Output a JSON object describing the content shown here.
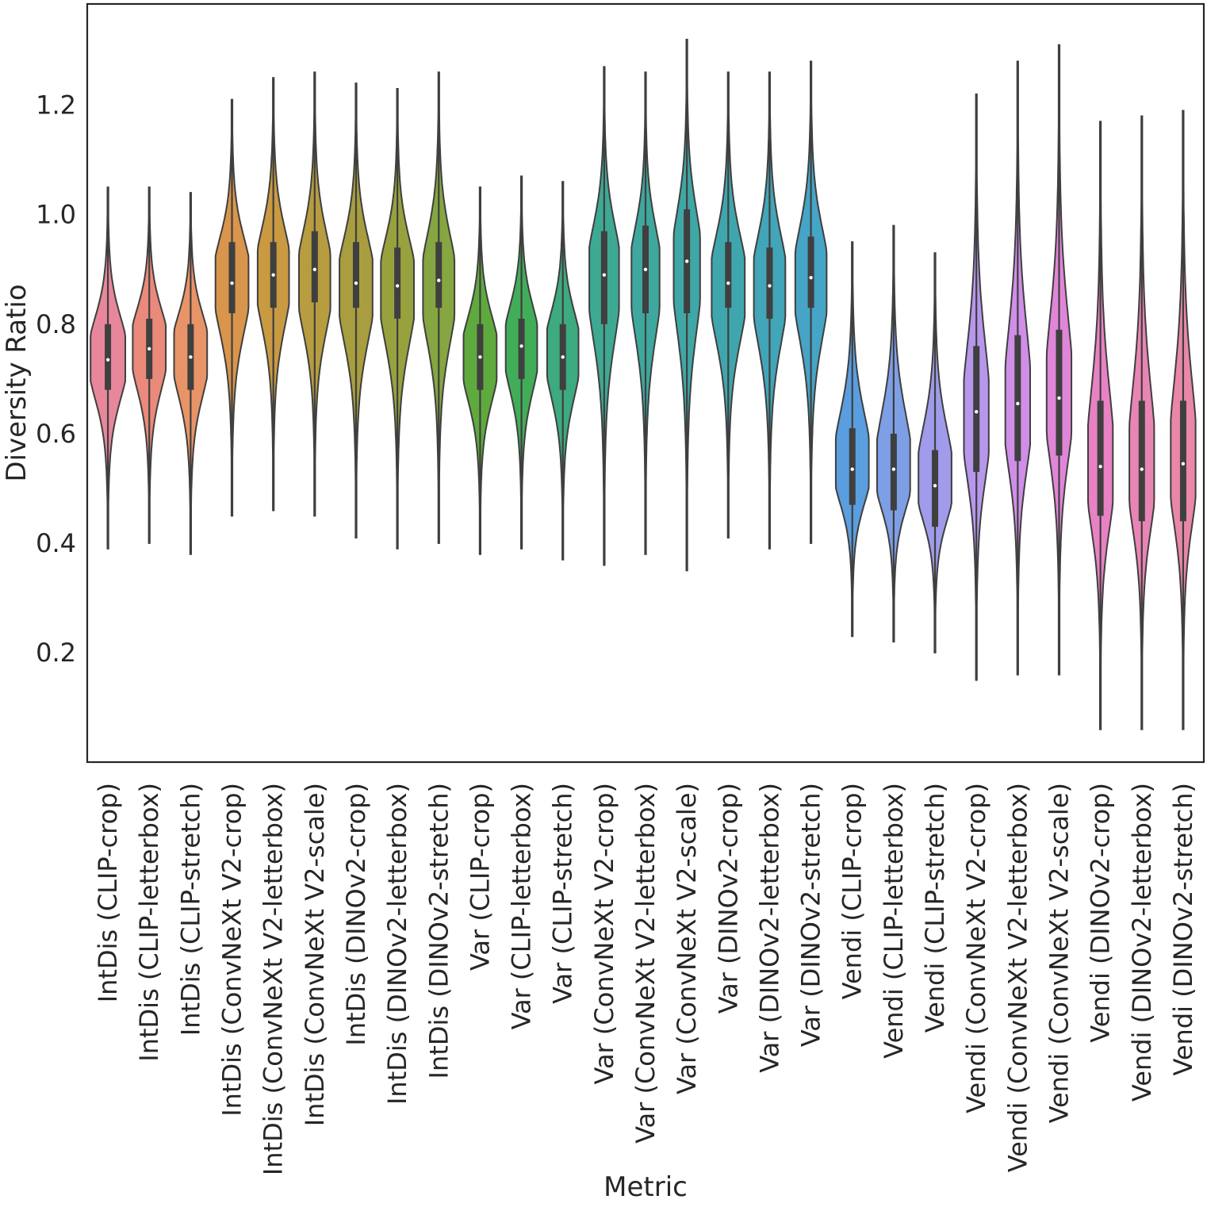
{
  "chart_data": {
    "type": "violin",
    "xlabel": "Metric",
    "ylabel": "Diversity Ratio",
    "ylim": [
      0.0,
      1.385
    ],
    "yticks": [
      0.2,
      0.4,
      0.6,
      0.8,
      1.0,
      1.2
    ],
    "ytick_labels": [
      "0.2",
      "0.4",
      "0.6",
      "0.8",
      "1.0",
      "1.2"
    ],
    "series": [
      {
        "name": "IntDis (CLIP-crop)",
        "color": "#e8879c",
        "min": 0.39,
        "q1": 0.68,
        "median": 0.735,
        "q3": 0.8,
        "max": 1.05,
        "mode": 0.74,
        "width": 0.42
      },
      {
        "name": "IntDis (CLIP-letterbox)",
        "color": "#ea8a7b",
        "min": 0.4,
        "q1": 0.7,
        "median": 0.755,
        "q3": 0.81,
        "max": 1.05,
        "mode": 0.76,
        "width": 0.4
      },
      {
        "name": "IntDis (CLIP-stretch)",
        "color": "#e99468",
        "min": 0.38,
        "q1": 0.68,
        "median": 0.74,
        "q3": 0.8,
        "max": 1.04,
        "mode": 0.75,
        "width": 0.4
      },
      {
        "name": "IntDis (ConvNeXt V2-crop)",
        "color": "#d9954c",
        "min": 0.45,
        "q1": 0.82,
        "median": 0.875,
        "q3": 0.95,
        "max": 1.21,
        "mode": 0.88,
        "width": 0.4
      },
      {
        "name": "IntDis (ConvNeXt V2-letterbox)",
        "color": "#c99a42",
        "min": 0.46,
        "q1": 0.83,
        "median": 0.89,
        "q3": 0.95,
        "max": 1.25,
        "mode": 0.89,
        "width": 0.38
      },
      {
        "name": "IntDis (ConvNeXt V2-scale)",
        "color": "#b79d3f",
        "min": 0.45,
        "q1": 0.84,
        "median": 0.9,
        "q3": 0.97,
        "max": 1.26,
        "mode": 0.88,
        "width": 0.38
      },
      {
        "name": "IntDis (DINOv2-crop)",
        "color": "#a89e3f",
        "min": 0.41,
        "q1": 0.83,
        "median": 0.875,
        "q3": 0.95,
        "max": 1.24,
        "mode": 0.87,
        "width": 0.4
      },
      {
        "name": "IntDis (DINOv2-letterbox)",
        "color": "#97a23e",
        "min": 0.39,
        "q1": 0.81,
        "median": 0.87,
        "q3": 0.94,
        "max": 1.23,
        "mode": 0.87,
        "width": 0.4
      },
      {
        "name": "IntDis (DINOv2-stretch)",
        "color": "#85a640",
        "min": 0.4,
        "q1": 0.83,
        "median": 0.88,
        "q3": 0.95,
        "max": 1.26,
        "mode": 0.87,
        "width": 0.38
      },
      {
        "name": "Var (CLIP-crop)",
        "color": "#5faa3e",
        "min": 0.38,
        "q1": 0.68,
        "median": 0.74,
        "q3": 0.8,
        "max": 1.05,
        "mode": 0.74,
        "width": 0.4
      },
      {
        "name": "Var (CLIP-letterbox)",
        "color": "#42ad58",
        "min": 0.39,
        "q1": 0.7,
        "median": 0.76,
        "q3": 0.81,
        "max": 1.07,
        "mode": 0.76,
        "width": 0.38
      },
      {
        "name": "Var (CLIP-stretch)",
        "color": "#3daa80",
        "min": 0.37,
        "q1": 0.68,
        "median": 0.74,
        "q3": 0.8,
        "max": 1.06,
        "mode": 0.75,
        "width": 0.38
      },
      {
        "name": "Var (ConvNeXt V2-crop)",
        "color": "#3ea993",
        "min": 0.36,
        "q1": 0.8,
        "median": 0.89,
        "q3": 0.97,
        "max": 1.27,
        "mode": 0.89,
        "width": 0.36
      },
      {
        "name": "Var (ConvNeXt V2-letterbox)",
        "color": "#3ea89e",
        "min": 0.38,
        "q1": 0.82,
        "median": 0.9,
        "q3": 0.98,
        "max": 1.26,
        "mode": 0.89,
        "width": 0.34
      },
      {
        "name": "Var (ConvNeXt V2-scale)",
        "color": "#3fa7a5",
        "min": 0.35,
        "q1": 0.82,
        "median": 0.915,
        "q3": 1.01,
        "max": 1.32,
        "mode": 0.91,
        "width": 0.32
      },
      {
        "name": "Var (DINOv2-crop)",
        "color": "#40a6ad",
        "min": 0.41,
        "q1": 0.83,
        "median": 0.875,
        "q3": 0.95,
        "max": 1.26,
        "mode": 0.87,
        "width": 0.4
      },
      {
        "name": "Var (DINOv2-letterbox)",
        "color": "#42a5b8",
        "min": 0.39,
        "q1": 0.81,
        "median": 0.87,
        "q3": 0.94,
        "max": 1.26,
        "mode": 0.87,
        "width": 0.38
      },
      {
        "name": "Var (DINOv2-stretch)",
        "color": "#46a4c6",
        "min": 0.4,
        "q1": 0.83,
        "median": 0.885,
        "q3": 0.96,
        "max": 1.28,
        "mode": 0.88,
        "width": 0.38
      },
      {
        "name": "Vendi (CLIP-crop)",
        "color": "#5a9ee0",
        "min": 0.23,
        "q1": 0.47,
        "median": 0.535,
        "q3": 0.61,
        "max": 0.95,
        "mode": 0.54,
        "width": 0.4
      },
      {
        "name": "Vendi (CLIP-letterbox)",
        "color": "#7e9fe6",
        "min": 0.22,
        "q1": 0.46,
        "median": 0.535,
        "q3": 0.6,
        "max": 0.98,
        "mode": 0.53,
        "width": 0.4
      },
      {
        "name": "Vendi (CLIP-stretch)",
        "color": "#a09ceb",
        "min": 0.2,
        "q1": 0.43,
        "median": 0.505,
        "q3": 0.57,
        "max": 0.93,
        "mode": 0.51,
        "width": 0.4
      },
      {
        "name": "Vendi (ConvNeXt V2-crop)",
        "color": "#b797ec",
        "min": 0.15,
        "q1": 0.53,
        "median": 0.64,
        "q3": 0.76,
        "max": 1.22,
        "mode": 0.62,
        "width": 0.3
      },
      {
        "name": "Vendi (ConvNeXt V2-letterbox)",
        "color": "#cf8fe8",
        "min": 0.16,
        "q1": 0.55,
        "median": 0.655,
        "q3": 0.78,
        "max": 1.28,
        "mode": 0.64,
        "width": 0.3
      },
      {
        "name": "Vendi (ConvNeXt V2-scale)",
        "color": "#e086d8",
        "min": 0.16,
        "q1": 0.56,
        "median": 0.665,
        "q3": 0.79,
        "max": 1.31,
        "mode": 0.66,
        "width": 0.3
      },
      {
        "name": "Vendi (DINOv2-crop)",
        "color": "#e882c4",
        "min": 0.06,
        "q1": 0.45,
        "median": 0.54,
        "q3": 0.66,
        "max": 1.17,
        "mode": 0.53,
        "width": 0.3
      },
      {
        "name": "Vendi (DINOv2-letterbox)",
        "color": "#e985b4",
        "min": 0.06,
        "q1": 0.44,
        "median": 0.535,
        "q3": 0.66,
        "max": 1.18,
        "mode": 0.53,
        "width": 0.3
      },
      {
        "name": "Vendi (DINOv2-stretch)",
        "color": "#e987a6",
        "min": 0.06,
        "q1": 0.44,
        "median": 0.545,
        "q3": 0.66,
        "max": 1.19,
        "mode": 0.54,
        "width": 0.3
      }
    ]
  }
}
